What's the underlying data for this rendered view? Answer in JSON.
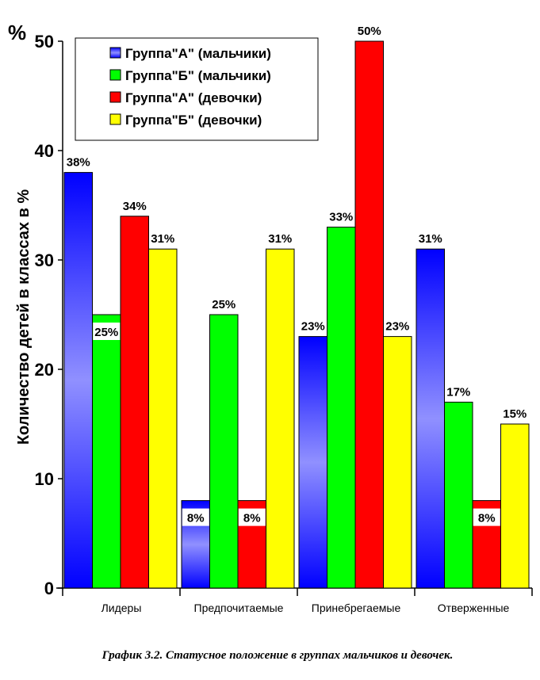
{
  "chart_data": {
    "type": "bar",
    "title": "",
    "ylabel": "Количество детей в классах в %",
    "yunit": "%",
    "ylim": [
      0,
      50
    ],
    "yticks": [
      0,
      10,
      20,
      30,
      40,
      50
    ],
    "grid": false,
    "legend_placement": "top-left",
    "categories": [
      "Лидеры",
      "Предпочитаемые",
      "Принебрегаемые",
      "Отверженные"
    ],
    "series": [
      {
        "name": "Группа\"А\" (мальчики)",
        "color": "#0000ff",
        "values": [
          38,
          8,
          23,
          31
        ],
        "labels": [
          "38%",
          "8%",
          "23%",
          "31%"
        ]
      },
      {
        "name": "Группа\"Б\" (мальчики)",
        "color": "#00ff00",
        "values": [
          25,
          25,
          33,
          17
        ],
        "labels": [
          "25%",
          "25%",
          "33%",
          "17%"
        ]
      },
      {
        "name": "Группа\"А\" (девочки)",
        "color": "#ff0000",
        "values": [
          34,
          8,
          50,
          8
        ],
        "labels": [
          "34%",
          "8%",
          "50%",
          "8%"
        ]
      },
      {
        "name": "Группа\"Б\" (девочки)",
        "color": "#ffff00",
        "values": [
          31,
          31,
          23,
          15
        ],
        "labels": [
          "31%",
          "31%",
          "23%",
          "15%"
        ]
      }
    ],
    "caption": "График 3.2. Статусное положение в группах мальчиков и девочек."
  }
}
